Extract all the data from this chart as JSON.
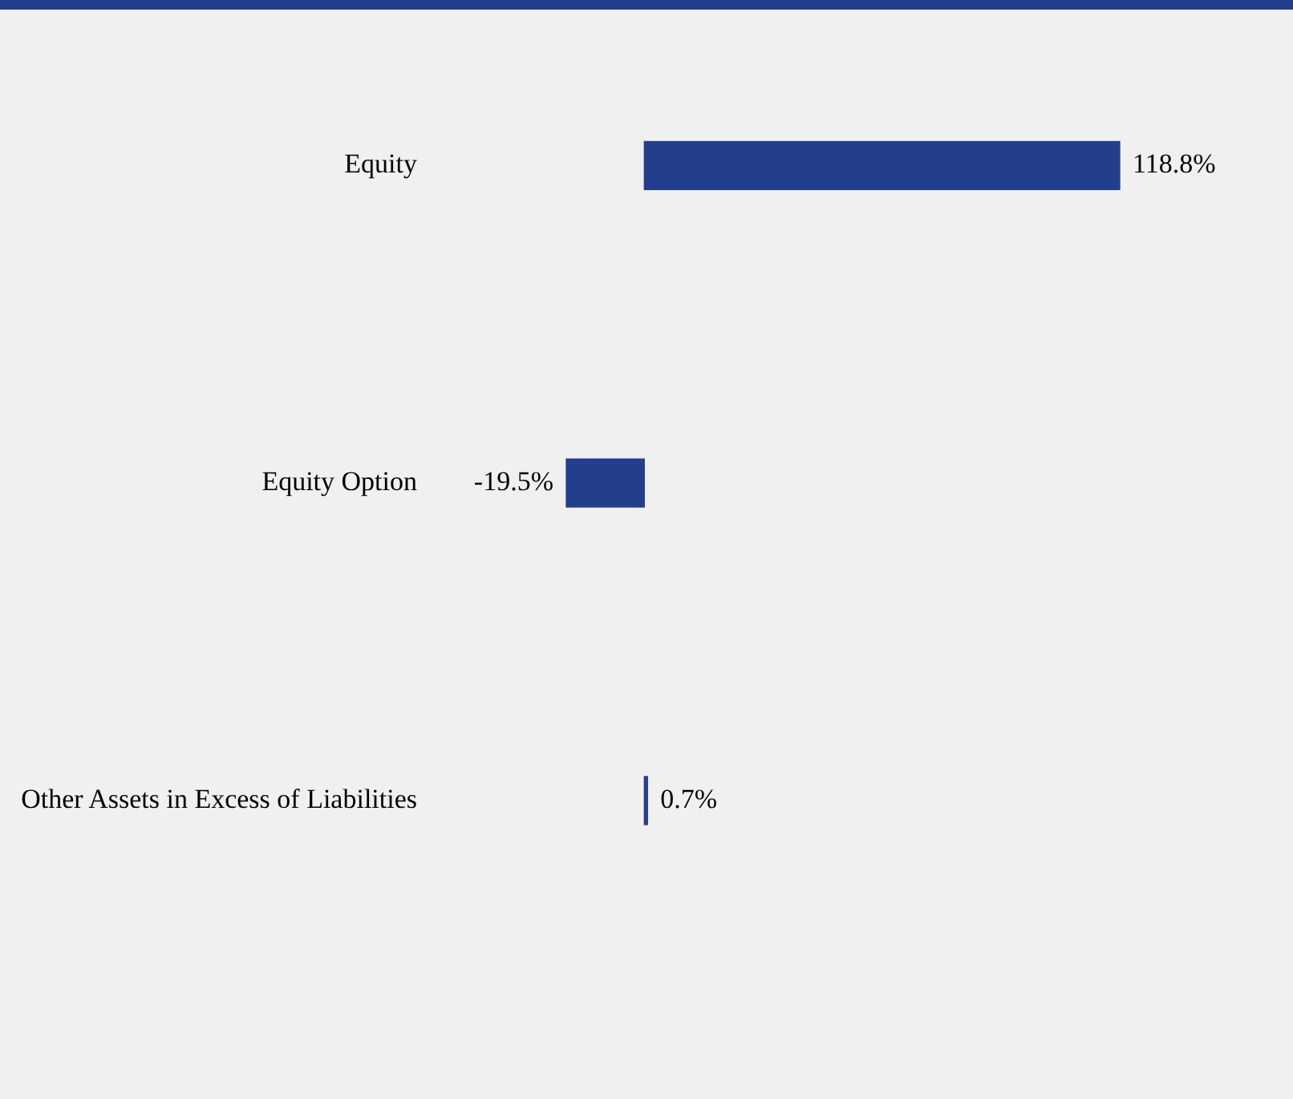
{
  "chart_data": {
    "type": "bar",
    "orientation": "horizontal",
    "categories": [
      "Equity",
      "Equity Option",
      "Other Assets in Excess of Liabilities"
    ],
    "values": [
      118.8,
      -19.5,
      0.7
    ],
    "color": "#233f8c",
    "value_labels": [
      "118.8%",
      "-19.5%",
      "0.7%"
    ],
    "grid": false,
    "legend": false
  }
}
